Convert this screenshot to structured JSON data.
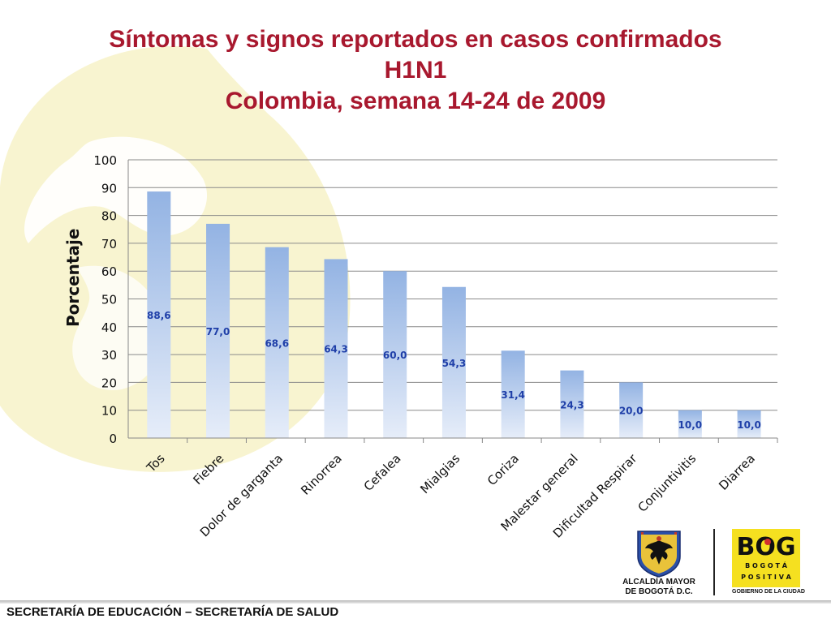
{
  "slide": {
    "title_lines": [
      "Síntomas y signos reportados en casos confirmados",
      "H1N1",
      "Colombia, semana 14-24 de 2009"
    ],
    "footer": "SECRETARÍA DE EDUCACIÓN – SECRETARÍA DE SALUD"
  },
  "logos": {
    "alcaldia_caption": [
      "ALCALDÍA MAYOR",
      "DE BOGOTÁ D.C."
    ],
    "bog_letters": "BOG",
    "bog_sub1": "B O G O T Á",
    "bog_sub2": "P O S I T I V A",
    "bog_tag": "GOBIERNO DE LA CIUDAD"
  },
  "chart_data": {
    "type": "bar",
    "title": "Síntomas y signos reportados en casos confirmados H1N1 Colombia, semana 14-24 de 2009",
    "xlabel": "",
    "ylabel": "Porcentaje",
    "ylim": [
      0,
      100
    ],
    "yticks": [
      0,
      10,
      20,
      30,
      40,
      50,
      60,
      70,
      80,
      90,
      100
    ],
    "grid": true,
    "legend": "none",
    "categories": [
      "Tos",
      "Fiebre",
      "Dolor de garganta",
      "Rinorrea",
      "Cefalea",
      "Mialgias",
      "Coriza",
      "Malestar general",
      "Dificultad Respirar",
      "Conjuntivitis",
      "Diarrea"
    ],
    "values": [
      88.6,
      77.0,
      68.6,
      64.3,
      60.0,
      54.3,
      31.4,
      24.3,
      20.0,
      10.0,
      10.0
    ],
    "value_labels": [
      "88,6",
      "77,0",
      "68,6",
      "64,3",
      "60,0",
      "54,3",
      "31,4",
      "24,3",
      "20,0",
      "10,0",
      "10,0"
    ],
    "colors": {
      "bar_top": "#93b3e3",
      "bar_bottom": "#e6edf9",
      "label": "#1f3fa8",
      "title": "#a8182e"
    }
  }
}
